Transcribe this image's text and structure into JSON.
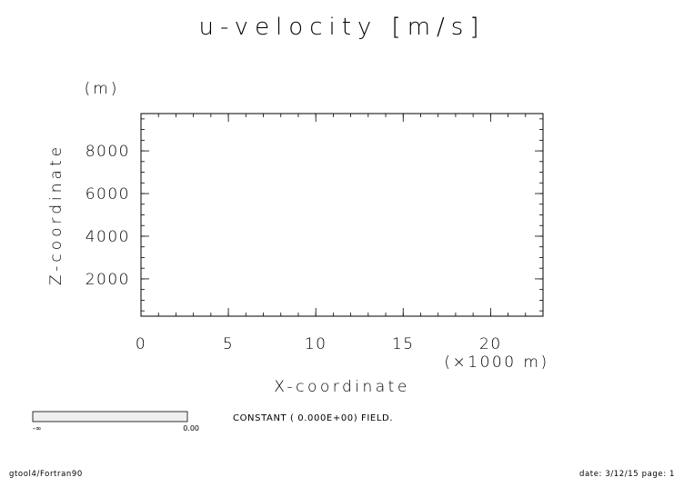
{
  "chart_data": {
    "type": "heatmap",
    "title": "u-velocity [m/s]",
    "xlabel": "X-coordinate",
    "x_unit": "(×1000 m)",
    "ylabel": "Z-coordinate",
    "y_unit": "(m)",
    "xlim": [
      0,
      23
    ],
    "ylim": [
      250,
      9750
    ],
    "x_ticks": [
      0,
      5,
      10,
      15,
      20
    ],
    "x_tick_labels": [
      "0",
      "5",
      "10",
      "15",
      "20"
    ],
    "y_ticks": [
      2000,
      4000,
      6000,
      8000
    ],
    "y_tick_labels": [
      "2000",
      "4000",
      "6000",
      "8000"
    ],
    "field_value": 0.0,
    "message": "CONSTANT ( 0.000E+00) FIELD.",
    "colorbar": {
      "min_label": "-∞",
      "max_label": "0.00",
      "color": "#efefef"
    }
  },
  "footer": {
    "left": "gtool4/Fortran90",
    "right": "date: 3/12/15 page: 1"
  }
}
